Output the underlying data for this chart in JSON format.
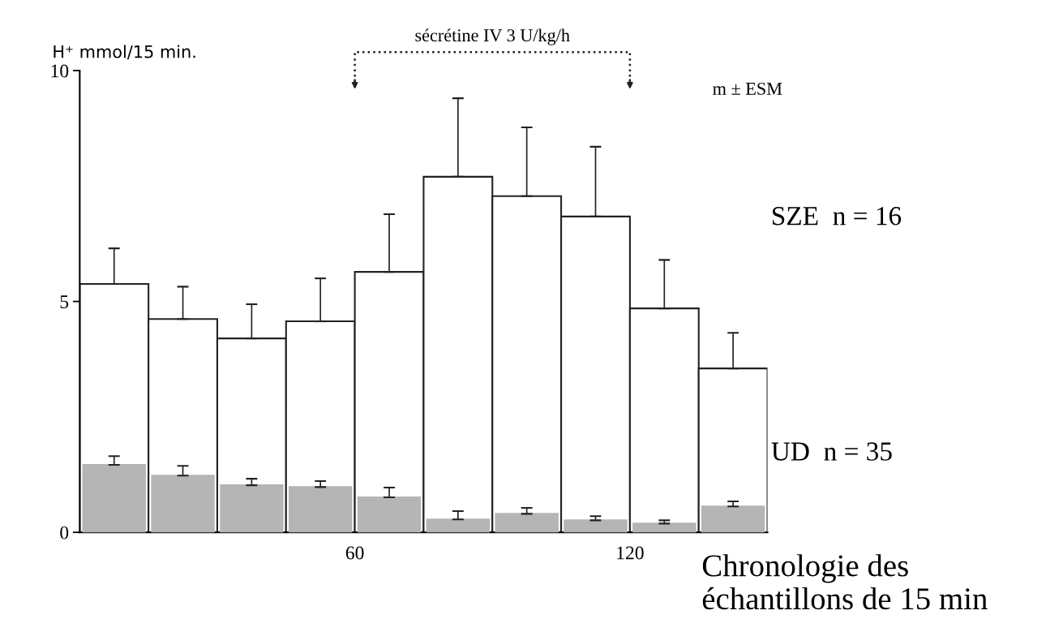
{
  "chart_data": {
    "type": "bar",
    "ylabel": "H⁺ mmol/15 min.",
    "xlabel": "Chronologie des\néchantillons de 15 min",
    "x": [
      7.5,
      22.5,
      37.5,
      52.5,
      67.5,
      82.5,
      97.5,
      112.5,
      127.5,
      142.5
    ],
    "series": [
      {
        "name": "SZE  n = 16",
        "color": "#ffffff",
        "values": [
          5.38,
          4.62,
          4.2,
          4.57,
          5.64,
          7.7,
          7.28,
          6.84,
          4.85,
          3.55
        ],
        "errors": [
          [
            5.38,
            6.15
          ],
          [
            4.62,
            5.32
          ],
          [
            4.2,
            4.94
          ],
          [
            4.57,
            5.5
          ],
          [
            5.64,
            6.89
          ],
          [
            7.7,
            9.4
          ],
          [
            7.28,
            8.77
          ],
          [
            6.84,
            8.35
          ],
          [
            4.85,
            5.9
          ],
          [
            3.55,
            4.32
          ]
        ]
      },
      {
        "name": "UD  n = 35",
        "color": "#b5b5b5",
        "values": [
          1.46,
          1.23,
          1.02,
          0.98,
          0.76,
          0.28,
          0.4,
          0.26,
          0.19,
          0.56
        ],
        "errors": [
          [
            1.46,
            1.65
          ],
          [
            1.23,
            1.44
          ],
          [
            1.02,
            1.16
          ],
          [
            0.98,
            1.11
          ],
          [
            0.76,
            0.97
          ],
          [
            0.28,
            0.46
          ],
          [
            0.4,
            0.53
          ],
          [
            0.26,
            0.35
          ],
          [
            0.19,
            0.26
          ],
          [
            0.56,
            0.67
          ]
        ]
      }
    ],
    "xlim": [
      0,
      150
    ],
    "ylim": [
      0,
      10
    ],
    "xticks": [
      60,
      120
    ],
    "yticks": [
      0,
      5,
      10
    ],
    "annotations": [
      "sécrétine IV 3 U/kg/h",
      "m ± ESM"
    ],
    "grid": false,
    "legend": false
  }
}
